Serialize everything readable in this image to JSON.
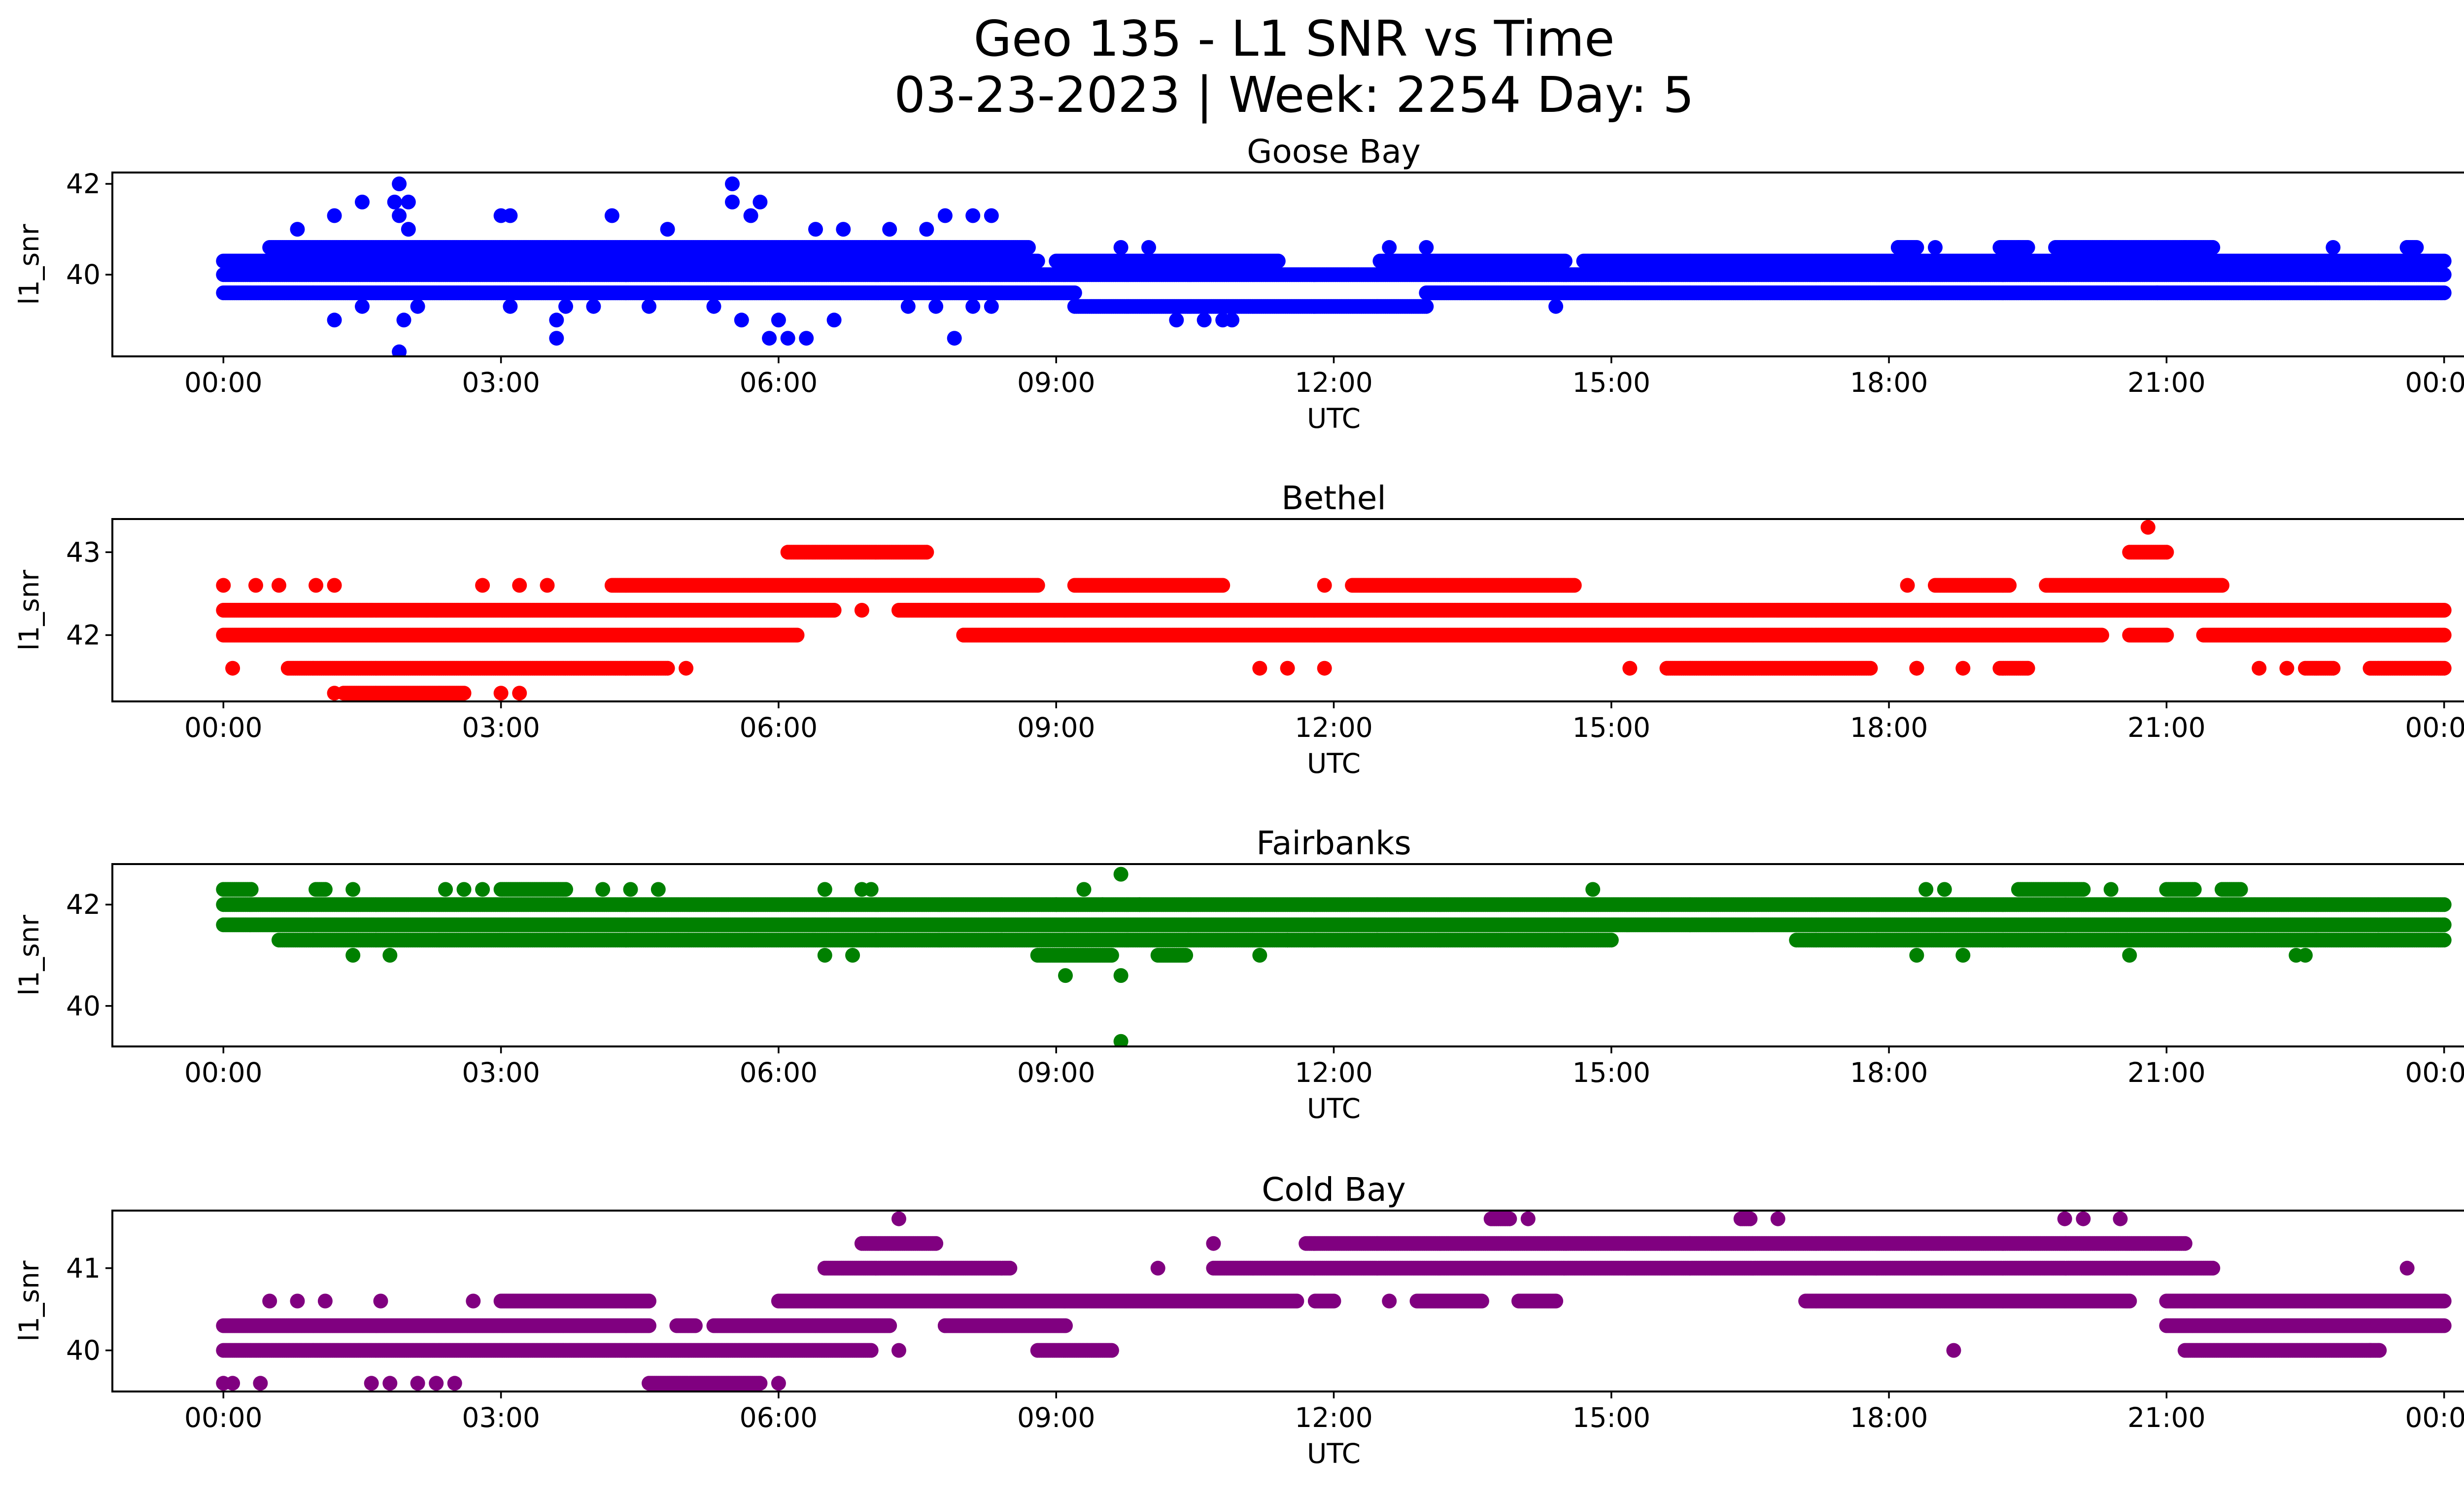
{
  "chart_data": {
    "title_line1": "Geo 135 - L1 SNR vs Time",
    "title_line2": "03-23-2023 | Week: 2254 Day: 5",
    "type": "scatter",
    "xtick_labels": [
      "00:00",
      "03:00",
      "06:00",
      "09:00",
      "12:00",
      "15:00",
      "18:00",
      "21:00",
      "00:00"
    ],
    "xlim_hours": [
      -1.2,
      25.2
    ],
    "panels": [
      {
        "title": "Goose Bay",
        "xlabel": "UTC",
        "ylabel": "l1_snr",
        "color": "#0000ff",
        "ylim": [
          38.2,
          42.25
        ],
        "yticks": [
          40,
          42
        ],
        "levels": [
          {
            "y": 40.3,
            "ranges": [
              [
                0,
                8.8
              ],
              [
                9.0,
                11.4
              ],
              [
                12.5,
                14.5
              ],
              [
                14.7,
                24
              ]
            ]
          },
          {
            "y": 40.0,
            "ranges": [
              [
                0,
                24
              ]
            ]
          },
          {
            "y": 40.6,
            "ranges": [
              [
                0.5,
                8.7
              ],
              [
                18.1,
                18.3
              ],
              [
                19.2,
                19.5
              ],
              [
                19.8,
                21.5
              ],
              [
                23.6,
                23.7
              ]
            ]
          },
          {
            "y": 39.6,
            "ranges": [
              [
                0,
                9.2
              ],
              [
                13.0,
                24
              ]
            ]
          },
          {
            "y": 39.3,
            "ranges": [
              [
                9.2,
                13.0
              ]
            ]
          }
        ],
        "points": [
          [
            1.9,
            42.0
          ],
          [
            1.85,
            41.6
          ],
          [
            2.0,
            41.6
          ],
          [
            1.5,
            41.6
          ],
          [
            1.2,
            41.3
          ],
          [
            1.9,
            41.3
          ],
          [
            2.0,
            41.0
          ],
          [
            0.8,
            41.0
          ],
          [
            3.0,
            41.3
          ],
          [
            3.1,
            41.3
          ],
          [
            4.2,
            41.3
          ],
          [
            5.5,
            41.6
          ],
          [
            5.7,
            41.3
          ],
          [
            5.5,
            42.0
          ],
          [
            5.8,
            41.6
          ],
          [
            4.8,
            41.0
          ],
          [
            6.7,
            41.0
          ],
          [
            7.2,
            41.0
          ],
          [
            7.6,
            41.0
          ],
          [
            7.8,
            41.3
          ],
          [
            8.1,
            41.3
          ],
          [
            8.3,
            41.3
          ],
          [
            6.4,
            41.0
          ],
          [
            1.9,
            38.3
          ],
          [
            1.95,
            39.0
          ],
          [
            2.1,
            39.3
          ],
          [
            1.2,
            39.0
          ],
          [
            1.5,
            39.3
          ],
          [
            3.1,
            39.3
          ],
          [
            3.6,
            38.6
          ],
          [
            3.6,
            39.0
          ],
          [
            3.7,
            39.3
          ],
          [
            4.0,
            39.3
          ],
          [
            4.6,
            39.3
          ],
          [
            5.3,
            39.3
          ],
          [
            5.6,
            39.0
          ],
          [
            5.9,
            38.6
          ],
          [
            6.1,
            38.6
          ],
          [
            6.0,
            39.0
          ],
          [
            6.3,
            38.6
          ],
          [
            6.6,
            39.0
          ],
          [
            7.4,
            39.3
          ],
          [
            7.7,
            39.3
          ],
          [
            7.9,
            38.6
          ],
          [
            8.1,
            39.3
          ],
          [
            8.3,
            39.3
          ],
          [
            10.3,
            39.0
          ],
          [
            10.6,
            39.0
          ],
          [
            9.7,
            40.6
          ],
          [
            10.0,
            40.6
          ],
          [
            12.6,
            40.6
          ],
          [
            13.0,
            40.6
          ],
          [
            14.4,
            39.3
          ],
          [
            22.8,
            40.6
          ],
          [
            20.9,
            39.6
          ],
          [
            20.4,
            40.6
          ],
          [
            21.2,
            40.6
          ],
          [
            18.5,
            40.6
          ],
          [
            19.4,
            40.6
          ],
          [
            18.1,
            40.6
          ],
          [
            23.6,
            40.6
          ],
          [
            10.8,
            39.0
          ],
          [
            10.9,
            39.0
          ]
        ]
      },
      {
        "title": "Bethel",
        "xlabel": "UTC",
        "ylabel": "l1_snr",
        "color": "#ff0000",
        "ylim": [
          41.2,
          43.4
        ],
        "yticks": [
          42,
          43
        ],
        "levels": [
          {
            "y": 42.3,
            "ranges": [
              [
                0,
                6.6
              ],
              [
                7.3,
                24
              ]
            ]
          },
          {
            "y": 42.0,
            "ranges": [
              [
                0,
                6.2
              ],
              [
                8.0,
                20.3
              ],
              [
                20.6,
                21.0
              ],
              [
                21.4,
                24
              ]
            ]
          },
          {
            "y": 42.6,
            "ranges": [
              [
                4.2,
                8.8
              ],
              [
                9.2,
                10.8
              ],
              [
                12.2,
                14.6
              ],
              [
                18.5,
                19.3
              ],
              [
                19.7,
                21.6
              ]
            ]
          },
          {
            "y": 41.6,
            "ranges": [
              [
                0.7,
                4.8
              ],
              [
                15.6,
                17.8
              ],
              [
                19.2,
                19.5
              ],
              [
                22.5,
                22.8
              ],
              [
                23.2,
                24
              ]
            ]
          },
          {
            "y": 43.0,
            "ranges": [
              [
                6.1,
                7.6
              ],
              [
                20.6,
                21.0
              ]
            ]
          },
          {
            "y": 41.3,
            "ranges": [
              [
                1.3,
                2.6
              ]
            ]
          }
        ],
        "points": [
          [
            0,
            42.6
          ],
          [
            0.35,
            42.6
          ],
          [
            0.6,
            42.6
          ],
          [
            1.0,
            42.6
          ],
          [
            1.2,
            42.6
          ],
          [
            2.8,
            42.6
          ],
          [
            3.2,
            42.6
          ],
          [
            3.5,
            42.6
          ],
          [
            0.1,
            41.6
          ],
          [
            5.0,
            41.6
          ],
          [
            1.6,
            42.3
          ],
          [
            2.2,
            42.3
          ],
          [
            2.3,
            42.3
          ],
          [
            3.0,
            41.3
          ],
          [
            3.2,
            41.3
          ],
          [
            1.2,
            41.3
          ],
          [
            11.2,
            41.6
          ],
          [
            11.5,
            41.6
          ],
          [
            11.9,
            41.6
          ],
          [
            11.9,
            42.6
          ],
          [
            15.2,
            41.6
          ],
          [
            18.2,
            42.6
          ],
          [
            18.3,
            41.6
          ],
          [
            18.8,
            41.6
          ],
          [
            20.8,
            43.3
          ],
          [
            22.0,
            41.6
          ],
          [
            22.3,
            41.6
          ],
          [
            8.0,
            42.0
          ],
          [
            6.9,
            42.3
          ],
          [
            16.8,
            42.3
          ],
          [
            18.3,
            41.6
          ]
        ]
      },
      {
        "title": "Fairbanks",
        "xlabel": "UTC",
        "ylabel": "l1_snr",
        "color": "#008000",
        "ylim": [
          39.2,
          42.8
        ],
        "yticks": [
          40,
          42
        ],
        "levels": [
          {
            "y": 42.0,
            "ranges": [
              [
                0,
                24
              ]
            ]
          },
          {
            "y": 41.6,
            "ranges": [
              [
                0,
                24
              ]
            ]
          },
          {
            "y": 41.3,
            "ranges": [
              [
                0.6,
                11.5
              ],
              [
                11.5,
                15.0
              ],
              [
                17.0,
                24
              ]
            ]
          },
          {
            "y": 42.3,
            "ranges": [
              [
                0,
                0.3
              ],
              [
                1.0,
                1.1
              ],
              [
                3.0,
                3.7
              ],
              [
                19.4,
                20.1
              ],
              [
                21.0,
                21.3
              ],
              [
                21.6,
                21.8
              ]
            ]
          },
          {
            "y": 41.0,
            "ranges": [
              [
                8.8,
                9.6
              ],
              [
                10.1,
                10.4
              ]
            ]
          }
        ],
        "points": [
          [
            0.3,
            42.3
          ],
          [
            1.4,
            42.3
          ],
          [
            2.4,
            42.3
          ],
          [
            2.6,
            42.3
          ],
          [
            2.8,
            42.3
          ],
          [
            4.1,
            42.3
          ],
          [
            4.4,
            42.3
          ],
          [
            4.7,
            42.3
          ],
          [
            6.5,
            42.3
          ],
          [
            6.9,
            42.3
          ],
          [
            7.0,
            42.3
          ],
          [
            9.3,
            42.3
          ],
          [
            9.7,
            42.6
          ],
          [
            9.7,
            40.6
          ],
          [
            9.7,
            39.3
          ],
          [
            9.1,
            40.6
          ],
          [
            14.8,
            42.3
          ],
          [
            18.4,
            42.3
          ],
          [
            18.6,
            42.3
          ],
          [
            20.4,
            42.3
          ],
          [
            1.4,
            41.0
          ],
          [
            1.8,
            41.0
          ],
          [
            6.5,
            41.0
          ],
          [
            6.8,
            41.0
          ],
          [
            11.2,
            41.0
          ],
          [
            18.3,
            41.0
          ],
          [
            18.8,
            41.0
          ],
          [
            20.6,
            41.0
          ],
          [
            22.4,
            41.0
          ],
          [
            22.5,
            41.0
          ],
          [
            9.0,
            42.0
          ],
          [
            9.5,
            42.0
          ],
          [
            9.9,
            42.0
          ]
        ]
      },
      {
        "title": "Cold Bay",
        "xlabel": "UTC",
        "ylabel": "l1_snr",
        "color": "#800080",
        "ylim": [
          39.5,
          41.7
        ],
        "yticks": [
          40,
          41
        ],
        "levels": [
          {
            "y": 40.3,
            "ranges": [
              [
                0,
                4.6
              ],
              [
                4.9,
                5.1
              ],
              [
                5.3,
                7.2
              ],
              [
                7.8,
                9.1
              ],
              [
                21.0,
                24
              ]
            ]
          },
          {
            "y": 40.0,
            "ranges": [
              [
                0,
                7.0
              ],
              [
                8.8,
                9.6
              ],
              [
                21.2,
                23.3
              ]
            ]
          },
          {
            "y": 40.6,
            "ranges": [
              [
                3.0,
                4.6
              ],
              [
                6.0,
                11.6
              ],
              [
                11.8,
                12.0
              ],
              [
                12.9,
                13.6
              ],
              [
                14.0,
                14.4
              ],
              [
                17.1,
                20.6
              ],
              [
                21.0,
                24
              ]
            ]
          },
          {
            "y": 41.0,
            "ranges": [
              [
                6.5,
                8.5
              ],
              [
                10.7,
                21.5
              ]
            ]
          },
          {
            "y": 41.3,
            "ranges": [
              [
                11.7,
                21.2
              ],
              [
                6.9,
                7.7
              ]
            ]
          },
          {
            "y": 39.6,
            "ranges": [
              [
                4.6,
                5.8
              ]
            ]
          },
          {
            "y": 41.6,
            "ranges": [
              [
                13.7,
                13.9
              ],
              [
                16.4,
                16.5
              ]
            ]
          }
        ],
        "points": [
          [
            0.5,
            40.6
          ],
          [
            0.8,
            40.6
          ],
          [
            1.1,
            40.6
          ],
          [
            1.7,
            40.6
          ],
          [
            2.7,
            40.6
          ],
          [
            0,
            39.6
          ],
          [
            0.1,
            39.6
          ],
          [
            0.4,
            39.6
          ],
          [
            1.6,
            39.6
          ],
          [
            1.8,
            39.6
          ],
          [
            2.1,
            39.6
          ],
          [
            2.3,
            39.6
          ],
          [
            2.5,
            39.6
          ],
          [
            6.0,
            39.6
          ],
          [
            7.3,
            40.0
          ],
          [
            7.3,
            41.6
          ],
          [
            7.8,
            40.3
          ],
          [
            10.1,
            41.0
          ],
          [
            10.7,
            41.3
          ],
          [
            12.6,
            40.6
          ],
          [
            14.1,
            41.6
          ],
          [
            16.8,
            41.6
          ],
          [
            18.7,
            40.0
          ],
          [
            19.9,
            41.6
          ],
          [
            20.1,
            41.6
          ],
          [
            20.5,
            41.6
          ],
          [
            21.3,
            40.6
          ],
          [
            23.6,
            41.0
          ],
          [
            23.2,
            40.0
          ]
        ]
      }
    ]
  }
}
